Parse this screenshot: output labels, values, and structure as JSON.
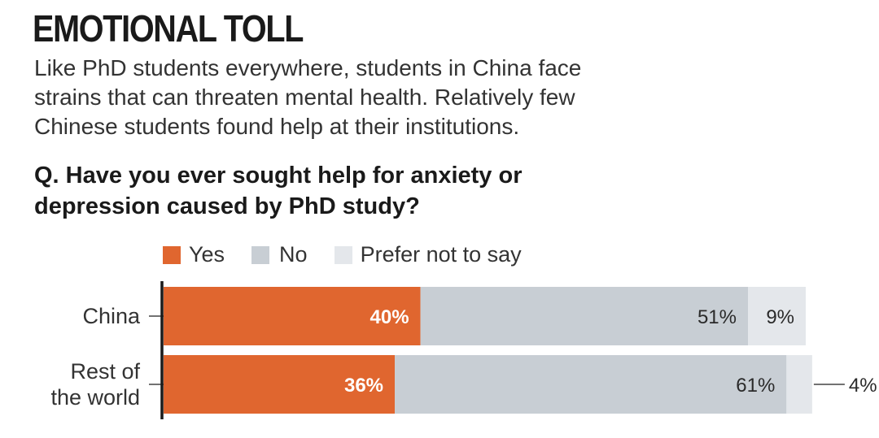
{
  "title": "EMOTIONAL TOLL",
  "subtitle": "Like PhD students everywhere, students in China face strains that can threaten mental health. Relatively few Chinese students found help at their institutions.",
  "question": "Q. Have you ever sought help for anxiety or depression caused by PhD study?",
  "colors": {
    "yes": "#e0662f",
    "no": "#c8ced4",
    "prefer": "#e4e7eb"
  },
  "chart_data": {
    "type": "bar",
    "orientation": "horizontal",
    "stacked": true,
    "categories": [
      [
        "China"
      ],
      [
        "Rest of",
        "the world"
      ]
    ],
    "series": [
      {
        "name": "Yes",
        "values": [
          40,
          36
        ],
        "labels": [
          "40%",
          "36%"
        ]
      },
      {
        "name": "No",
        "values": [
          51,
          61
        ],
        "labels": [
          "51%",
          "61%"
        ]
      },
      {
        "name": "Prefer not to say",
        "values": [
          9,
          4
        ],
        "labels": [
          "9%",
          "4%"
        ]
      }
    ],
    "xlim": [
      0,
      100
    ],
    "legend_position": "top"
  }
}
